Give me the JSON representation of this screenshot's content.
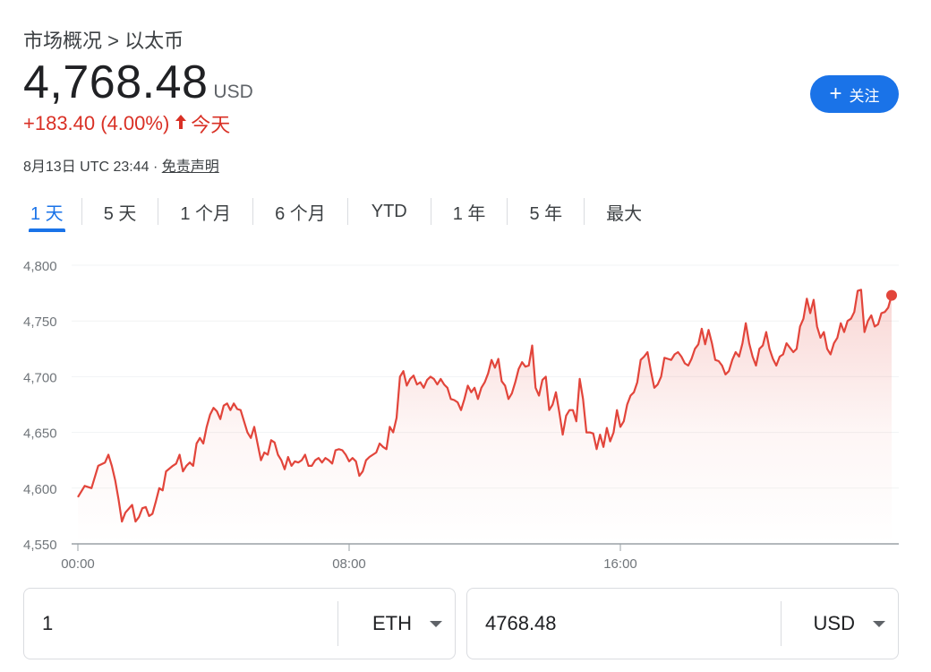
{
  "breadcrumb": "市场概况 > 以太币",
  "price": {
    "value": "4,768.48",
    "currency": "USD",
    "change": "+183.40 (4.00%)",
    "period": "今天",
    "timestamp": "8月13日 UTC 23:44 · ",
    "disclaimer": "免责声明"
  },
  "follow_button": {
    "icon": "plus-icon",
    "label": "关注"
  },
  "tabs": [
    {
      "label": "1 天",
      "active": true
    },
    {
      "label": "5 天"
    },
    {
      "label": "1 个月"
    },
    {
      "label": "6 个月"
    },
    {
      "label": "YTD"
    },
    {
      "label": "1 年"
    },
    {
      "label": "5 年"
    },
    {
      "label": "最大"
    }
  ],
  "colors": {
    "accent": "#1a73e8",
    "line": "#e2453b",
    "negative": "#d93025"
  },
  "chart_data": {
    "type": "area",
    "title": "",
    "xlabel": "",
    "ylabel": "",
    "ylim": [
      4550,
      4800
    ],
    "yticks": [
      "4,800",
      "4,750",
      "4,700",
      "4,650",
      "4,600",
      "4,550"
    ],
    "xticks": [
      "00:00",
      "08:00",
      "16:00"
    ],
    "x_range_hours": [
      0,
      24
    ],
    "series": [
      {
        "values": [
          [
            0.0,
            4592
          ],
          [
            0.2,
            4602
          ],
          [
            0.4,
            4600
          ],
          [
            0.6,
            4620
          ],
          [
            0.8,
            4623
          ],
          [
            0.9,
            4630
          ],
          [
            1.0,
            4620
          ],
          [
            1.1,
            4607
          ],
          [
            1.2,
            4590
          ],
          [
            1.3,
            4570
          ],
          [
            1.4,
            4578
          ],
          [
            1.6,
            4585
          ],
          [
            1.7,
            4570
          ],
          [
            1.8,
            4574
          ],
          [
            1.9,
            4582
          ],
          [
            2.0,
            4583
          ],
          [
            2.1,
            4575
          ],
          [
            2.2,
            4577
          ],
          [
            2.3,
            4588
          ],
          [
            2.4,
            4600
          ],
          [
            2.5,
            4598
          ],
          [
            2.6,
            4615
          ],
          [
            2.8,
            4620
          ],
          [
            2.9,
            4622
          ],
          [
            3.0,
            4630
          ],
          [
            3.1,
            4615
          ],
          [
            3.2,
            4620
          ],
          [
            3.3,
            4623
          ],
          [
            3.4,
            4620
          ],
          [
            3.5,
            4640
          ],
          [
            3.6,
            4645
          ],
          [
            3.7,
            4640
          ],
          [
            3.8,
            4655
          ],
          [
            3.9,
            4666
          ],
          [
            4.0,
            4672
          ],
          [
            4.1,
            4669
          ],
          [
            4.2,
            4662
          ],
          [
            4.3,
            4674
          ],
          [
            4.4,
            4676
          ],
          [
            4.5,
            4670
          ],
          [
            4.6,
            4676
          ],
          [
            4.7,
            4671
          ],
          [
            4.8,
            4670
          ],
          [
            4.9,
            4660
          ],
          [
            5.0,
            4650
          ],
          [
            5.1,
            4645
          ],
          [
            5.2,
            4655
          ],
          [
            5.3,
            4640
          ],
          [
            5.4,
            4625
          ],
          [
            5.5,
            4632
          ],
          [
            5.6,
            4630
          ],
          [
            5.7,
            4643
          ],
          [
            5.8,
            4641
          ],
          [
            5.9,
            4630
          ],
          [
            6.0,
            4625
          ],
          [
            6.1,
            4617
          ],
          [
            6.2,
            4628
          ],
          [
            6.3,
            4620
          ],
          [
            6.4,
            4624
          ],
          [
            6.5,
            4623
          ],
          [
            6.6,
            4625
          ],
          [
            6.7,
            4630
          ],
          [
            6.8,
            4620
          ],
          [
            6.9,
            4620
          ],
          [
            7.0,
            4625
          ],
          [
            7.1,
            4627
          ],
          [
            7.2,
            4623
          ],
          [
            7.3,
            4627
          ],
          [
            7.4,
            4625
          ],
          [
            7.5,
            4622
          ],
          [
            7.6,
            4634
          ],
          [
            7.7,
            4635
          ],
          [
            7.8,
            4634
          ],
          [
            7.9,
            4630
          ],
          [
            8.0,
            4624
          ],
          [
            8.1,
            4627
          ],
          [
            8.2,
            4624
          ],
          [
            8.3,
            4611
          ],
          [
            8.4,
            4615
          ],
          [
            8.5,
            4625
          ],
          [
            8.6,
            4628
          ],
          [
            8.7,
            4630
          ],
          [
            8.8,
            4632
          ],
          [
            8.9,
            4640
          ],
          [
            9.0,
            4637
          ],
          [
            9.1,
            4635
          ],
          [
            9.2,
            4655
          ],
          [
            9.3,
            4650
          ],
          [
            9.4,
            4663
          ],
          [
            9.5,
            4700
          ],
          [
            9.6,
            4705
          ],
          [
            9.7,
            4692
          ],
          [
            9.8,
            4698
          ],
          [
            9.9,
            4701
          ],
          [
            10.0,
            4693
          ],
          [
            10.1,
            4695
          ],
          [
            10.2,
            4690
          ],
          [
            10.3,
            4697
          ],
          [
            10.4,
            4700
          ],
          [
            10.5,
            4698
          ],
          [
            10.6,
            4693
          ],
          [
            10.7,
            4698
          ],
          [
            10.8,
            4693
          ],
          [
            10.9,
            4690
          ],
          [
            11.0,
            4680
          ],
          [
            11.1,
            4679
          ],
          [
            11.2,
            4677
          ],
          [
            11.3,
            4670
          ],
          [
            11.4,
            4680
          ],
          [
            11.5,
            4692
          ],
          [
            11.6,
            4686
          ],
          [
            11.7,
            4690
          ],
          [
            11.8,
            4680
          ],
          [
            11.9,
            4690
          ],
          [
            12.0,
            4695
          ],
          [
            12.1,
            4703
          ],
          [
            12.2,
            4715
          ],
          [
            12.3,
            4708
          ],
          [
            12.4,
            4716
          ],
          [
            12.5,
            4696
          ],
          [
            12.6,
            4692
          ],
          [
            12.7,
            4680
          ],
          [
            12.8,
            4685
          ],
          [
            12.9,
            4695
          ],
          [
            13.0,
            4707
          ],
          [
            13.1,
            4713
          ],
          [
            13.2,
            4709
          ],
          [
            13.3,
            4710
          ],
          [
            13.4,
            4728
          ],
          [
            13.5,
            4690
          ],
          [
            13.6,
            4683
          ],
          [
            13.7,
            4697
          ],
          [
            13.8,
            4700
          ],
          [
            13.9,
            4670
          ],
          [
            14.0,
            4675
          ],
          [
            14.1,
            4686
          ],
          [
            14.2,
            4668
          ],
          [
            14.3,
            4648
          ],
          [
            14.4,
            4665
          ],
          [
            14.5,
            4670
          ],
          [
            14.6,
            4670
          ],
          [
            14.7,
            4660
          ],
          [
            14.8,
            4698
          ],
          [
            14.9,
            4680
          ],
          [
            15.0,
            4650
          ],
          [
            15.1,
            4650
          ],
          [
            15.2,
            4649
          ],
          [
            15.3,
            4635
          ],
          [
            15.4,
            4648
          ],
          [
            15.5,
            4637
          ],
          [
            15.6,
            4654
          ],
          [
            15.7,
            4642
          ],
          [
            15.8,
            4650
          ],
          [
            15.9,
            4670
          ],
          [
            16.0,
            4655
          ],
          [
            16.1,
            4660
          ],
          [
            16.2,
            4675
          ],
          [
            16.3,
            4683
          ],
          [
            16.4,
            4686
          ],
          [
            16.5,
            4695
          ],
          [
            16.6,
            4715
          ],
          [
            16.7,
            4718
          ],
          [
            16.8,
            4722
          ],
          [
            16.9,
            4705
          ],
          [
            17.0,
            4690
          ],
          [
            17.1,
            4693
          ],
          [
            17.2,
            4700
          ],
          [
            17.3,
            4717
          ],
          [
            17.4,
            4716
          ],
          [
            17.5,
            4715
          ],
          [
            17.6,
            4720
          ],
          [
            17.7,
            4722
          ],
          [
            17.8,
            4718
          ],
          [
            17.9,
            4712
          ],
          [
            18.0,
            4710
          ],
          [
            18.1,
            4716
          ],
          [
            18.2,
            4725
          ],
          [
            18.3,
            4729
          ],
          [
            18.4,
            4743
          ],
          [
            18.5,
            4729
          ],
          [
            18.6,
            4742
          ],
          [
            18.7,
            4730
          ],
          [
            18.8,
            4715
          ],
          [
            18.9,
            4714
          ],
          [
            19.0,
            4710
          ],
          [
            19.1,
            4702
          ],
          [
            19.2,
            4705
          ],
          [
            19.3,
            4715
          ],
          [
            19.4,
            4722
          ],
          [
            19.5,
            4718
          ],
          [
            19.6,
            4730
          ],
          [
            19.7,
            4748
          ],
          [
            19.8,
            4730
          ],
          [
            19.9,
            4718
          ],
          [
            20.0,
            4710
          ],
          [
            20.1,
            4725
          ],
          [
            20.2,
            4728
          ],
          [
            20.3,
            4740
          ],
          [
            20.4,
            4725
          ],
          [
            20.5,
            4716
          ],
          [
            20.6,
            4710
          ],
          [
            20.7,
            4718
          ],
          [
            20.8,
            4720
          ],
          [
            20.9,
            4730
          ],
          [
            21.0,
            4726
          ],
          [
            21.1,
            4722
          ],
          [
            21.2,
            4725
          ],
          [
            21.3,
            4745
          ],
          [
            21.4,
            4752
          ],
          [
            21.5,
            4770
          ],
          [
            21.6,
            4757
          ],
          [
            21.7,
            4769
          ],
          [
            21.8,
            4745
          ],
          [
            21.9,
            4735
          ],
          [
            22.0,
            4740
          ],
          [
            22.1,
            4725
          ],
          [
            22.2,
            4720
          ],
          [
            22.3,
            4730
          ],
          [
            22.4,
            4735
          ],
          [
            22.5,
            4748
          ],
          [
            22.6,
            4740
          ],
          [
            22.7,
            4750
          ],
          [
            22.8,
            4752
          ],
          [
            22.9,
            4758
          ],
          [
            23.0,
            4777
          ],
          [
            23.1,
            4778
          ],
          [
            23.2,
            4740
          ],
          [
            23.3,
            4750
          ],
          [
            23.4,
            4755
          ],
          [
            23.5,
            4745
          ],
          [
            23.6,
            4747
          ],
          [
            23.7,
            4757
          ],
          [
            23.8,
            4758
          ],
          [
            23.9,
            4762
          ],
          [
            24.0,
            4773
          ]
        ]
      }
    ]
  },
  "converter": {
    "left": {
      "value": "1",
      "unit": "ETH"
    },
    "right": {
      "value": "4768.48",
      "unit": "USD"
    }
  }
}
